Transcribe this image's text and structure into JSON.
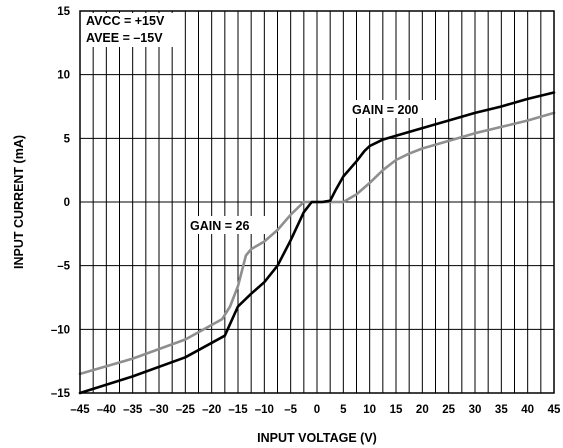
{
  "chart_data": {
    "type": "line",
    "title": "",
    "xlabel": "INPUT VOLTAGE (V)",
    "ylabel": "INPUT CURRENT (mA)",
    "xlim": [
      -45,
      45
    ],
    "ylim": [
      -15,
      15
    ],
    "x_ticks": [
      -45,
      -40,
      -35,
      -30,
      -25,
      -20,
      -15,
      -10,
      -5,
      0,
      5,
      10,
      15,
      20,
      25,
      30,
      35,
      40,
      45
    ],
    "x_tick_labels": [
      "–45",
      "–40",
      "–35",
      "–30",
      "–25",
      "–20",
      "–15",
      "–10",
      "–5",
      "0",
      "5",
      "10",
      "15",
      "20",
      "25",
      "30",
      "35",
      "40",
      "45"
    ],
    "y_ticks": [
      -15,
      -10,
      -5,
      0,
      5,
      10,
      15
    ],
    "y_tick_labels": [
      "–15",
      "–10",
      "–5",
      "0",
      "5",
      "10",
      "15"
    ],
    "vertical_grid_every": 2.5,
    "horizontal_grid_every": 5,
    "annotations": {
      "supply_line1": "AVCC = +15V",
      "supply_line2": "AVEE = –15V",
      "gain_200": "GAIN = 200",
      "gain_26": "GAIN = 26"
    },
    "series": [
      {
        "name": "GAIN = 200",
        "color": "#000000",
        "x": [
          -45,
          -35,
          -25,
          -17.5,
          -15,
          -12.5,
          -10,
          -7.5,
          -5,
          -2.5,
          -1,
          0,
          1,
          2.5,
          3.5,
          5,
          7.5,
          9,
          10,
          12.5,
          15,
          20,
          25,
          30,
          35,
          40,
          45
        ],
        "y": [
          -15,
          -13.7,
          -12.2,
          -10.5,
          -8.2,
          -7.2,
          -6.3,
          -5,
          -3,
          -0.8,
          0,
          0,
          0,
          0.1,
          0.9,
          2,
          3.2,
          4,
          4.4,
          4.9,
          5.2,
          5.8,
          6.4,
          7,
          7.5,
          8.1,
          8.6
        ]
      },
      {
        "name": "GAIN = 26",
        "color": "#8f8f8f",
        "x": [
          -45,
          -35,
          -25,
          -18,
          -16.5,
          -15,
          -13.5,
          -12.5,
          -10,
          -7.5,
          -5,
          -2.5,
          -1,
          0,
          5,
          7.5,
          10,
          12.5,
          15,
          17.5,
          20,
          25,
          30,
          35,
          40,
          45
        ],
        "y": [
          -13.5,
          -12.3,
          -10.8,
          -9.2,
          -8.2,
          -6.6,
          -4.2,
          -3.7,
          -3.1,
          -2.2,
          -1,
          0,
          0,
          0,
          0,
          0.6,
          1.5,
          2.5,
          3.3,
          3.8,
          4.2,
          4.8,
          5.4,
          5.9,
          6.4,
          7
        ]
      }
    ]
  }
}
